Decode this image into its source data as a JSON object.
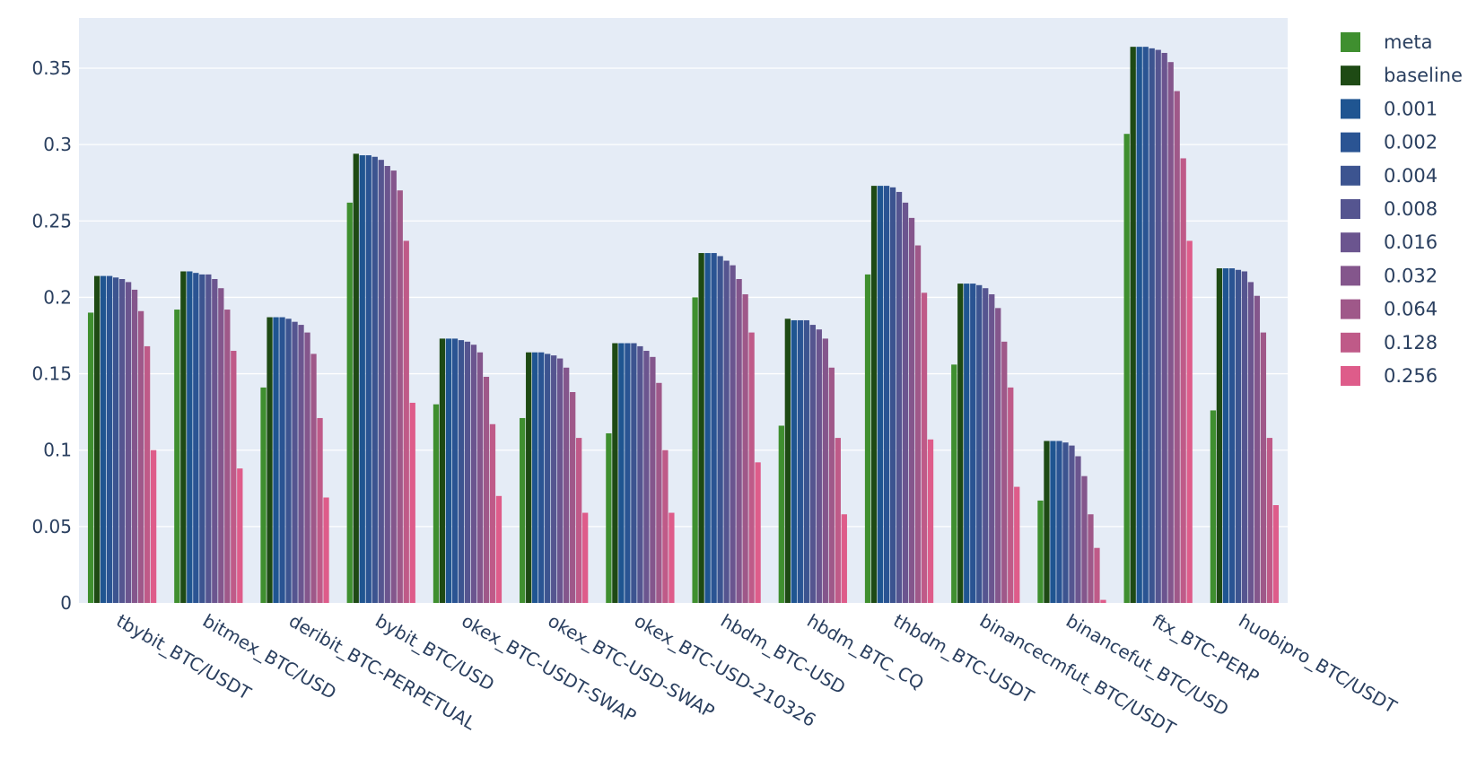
{
  "chart_data": {
    "type": "bar",
    "title": "",
    "xlabel": "",
    "ylabel": "",
    "ylim": [
      0,
      0.385
    ],
    "yticks": [
      0,
      0.05,
      0.1,
      0.15,
      0.2,
      0.25,
      0.3,
      0.35
    ],
    "ytick_labels": [
      "0",
      "0.05",
      "0.1",
      "0.15",
      "0.2",
      "0.25",
      "0.3",
      "0.35"
    ],
    "grid": true,
    "legend_position": "right",
    "background_color": "#e5ecf6",
    "categories": [
      "tbybit_BTC/USDT",
      "bitmex_BTC/USD",
      "deribit_BTC-PERPETUAL",
      "bybit_BTC/USD",
      "okex_BTC-USDT-SWAP",
      "okex_BTC-USD-SWAP",
      "okex_BTC-USD-210326",
      "hbdm_BTC-USD",
      "hbdm_BTC_CQ",
      "thbdm_BTC-USDT",
      "binancecmfut_BTC/USDT",
      "binancefut_BTC/USD",
      "ftx_BTC-PERP",
      "huobipro_BTC/USDT"
    ],
    "series": [
      {
        "name": "meta",
        "color": "#3f8f2f",
        "values": [
          0.19,
          0.192,
          0.141,
          0.262,
          0.13,
          0.121,
          0.111,
          0.2,
          0.116,
          0.215,
          0.156,
          0.067,
          0.307,
          0.126
        ]
      },
      {
        "name": "baseline",
        "color": "#1e4a14",
        "values": [
          0.214,
          0.217,
          0.187,
          0.294,
          0.173,
          0.164,
          0.17,
          0.229,
          0.186,
          0.273,
          0.209,
          0.106,
          0.364,
          0.219
        ]
      },
      {
        "name": "0.001",
        "color": "#1f5591",
        "values": [
          0.214,
          0.217,
          0.187,
          0.293,
          0.173,
          0.164,
          0.17,
          0.229,
          0.185,
          0.273,
          0.209,
          0.106,
          0.364,
          0.219
        ]
      },
      {
        "name": "0.002",
        "color": "#2a5493",
        "values": [
          0.214,
          0.216,
          0.187,
          0.293,
          0.173,
          0.164,
          0.17,
          0.229,
          0.185,
          0.273,
          0.209,
          0.106,
          0.364,
          0.219
        ]
      },
      {
        "name": "0.004",
        "color": "#3c5490",
        "values": [
          0.213,
          0.215,
          0.186,
          0.292,
          0.172,
          0.163,
          0.17,
          0.227,
          0.185,
          0.272,
          0.208,
          0.105,
          0.363,
          0.218
        ]
      },
      {
        "name": "0.008",
        "color": "#555590",
        "values": [
          0.212,
          0.215,
          0.184,
          0.29,
          0.171,
          0.162,
          0.168,
          0.224,
          0.182,
          0.269,
          0.206,
          0.103,
          0.362,
          0.217
        ]
      },
      {
        "name": "0.016",
        "color": "#6b558f",
        "values": [
          0.21,
          0.212,
          0.182,
          0.286,
          0.169,
          0.16,
          0.165,
          0.221,
          0.179,
          0.262,
          0.202,
          0.096,
          0.36,
          0.21
        ]
      },
      {
        "name": "0.032",
        "color": "#84568c",
        "values": [
          0.205,
          0.206,
          0.177,
          0.283,
          0.164,
          0.154,
          0.161,
          0.212,
          0.173,
          0.252,
          0.193,
          0.083,
          0.354,
          0.201
        ]
      },
      {
        "name": "0.064",
        "color": "#9f5889",
        "values": [
          0.191,
          0.192,
          0.163,
          0.27,
          0.148,
          0.138,
          0.144,
          0.202,
          0.154,
          0.234,
          0.171,
          0.058,
          0.335,
          0.177
        ]
      },
      {
        "name": "0.128",
        "color": "#bf5a88",
        "values": [
          0.168,
          0.165,
          0.121,
          0.237,
          0.117,
          0.108,
          0.1,
          0.177,
          0.108,
          0.203,
          0.141,
          0.036,
          0.291,
          0.108
        ]
      },
      {
        "name": "0.256",
        "color": "#de5c8a",
        "values": [
          0.1,
          0.088,
          0.069,
          0.131,
          0.07,
          0.059,
          0.059,
          0.092,
          0.058,
          0.107,
          0.076,
          0.002,
          0.237,
          0.064
        ]
      }
    ]
  }
}
